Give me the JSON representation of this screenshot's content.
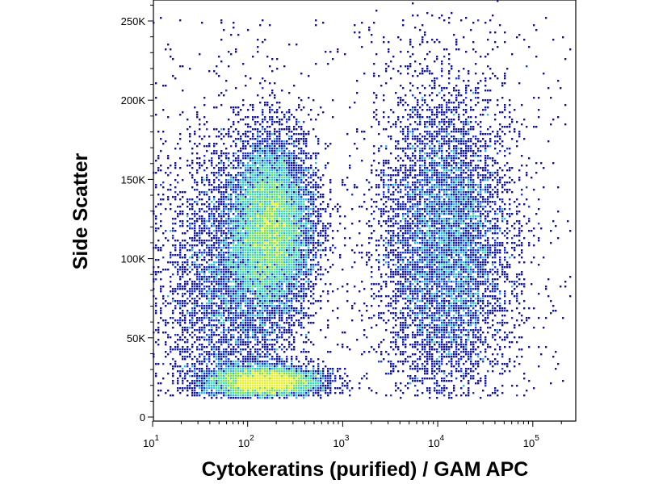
{
  "chart_data": {
    "type": "scatter",
    "subtype": "flow-cytometry pseudocolor density plot",
    "title": "",
    "xlabel": "Cytokeratins (purified) / GAM APC",
    "ylabel": "Side Scatter",
    "x_scale": "log",
    "xlim": [
      10,
      262144
    ],
    "ylim": [
      0,
      262144
    ],
    "x_ticks": [
      {
        "value": 10,
        "base": "10",
        "exp": "1"
      },
      {
        "value": 100,
        "base": "10",
        "exp": "2"
      },
      {
        "value": 1000,
        "base": "10",
        "exp": "3"
      },
      {
        "value": 10000,
        "base": "10",
        "exp": "4"
      },
      {
        "value": 100000,
        "base": "10",
        "exp": "5"
      }
    ],
    "y_ticks": [
      {
        "value": 0,
        "label": "0"
      },
      {
        "value": 50000,
        "label": "50K"
      },
      {
        "value": 100000,
        "label": "100K"
      },
      {
        "value": 150000,
        "label": "150K"
      },
      {
        "value": 200000,
        "label": "200K"
      },
      {
        "value": 250000,
        "label": "250K"
      }
    ],
    "grid": false,
    "legend": "none",
    "populations": [
      {
        "x_center": 180,
        "x_spread_decades": 0.22,
        "y_center": 120000,
        "y_sd": 28000,
        "relative_count": 9000
      },
      {
        "x_center": 150,
        "x_spread_decades": 0.3,
        "y_center": 22000,
        "y_sd": 5000,
        "relative_count": 5000
      },
      {
        "x_center": 60,
        "x_spread_decades": 0.35,
        "y_center": 80000,
        "y_sd": 45000,
        "relative_count": 4000
      },
      {
        "x_center": 12000,
        "x_spread_decades": 0.35,
        "y_center": 110000,
        "y_sd": 50000,
        "relative_count": 7000
      }
    ],
    "density_colors": [
      "#14148c",
      "#2038d0",
      "#30b8e0",
      "#40e0a8",
      "#80e040",
      "#e8f020"
    ]
  }
}
